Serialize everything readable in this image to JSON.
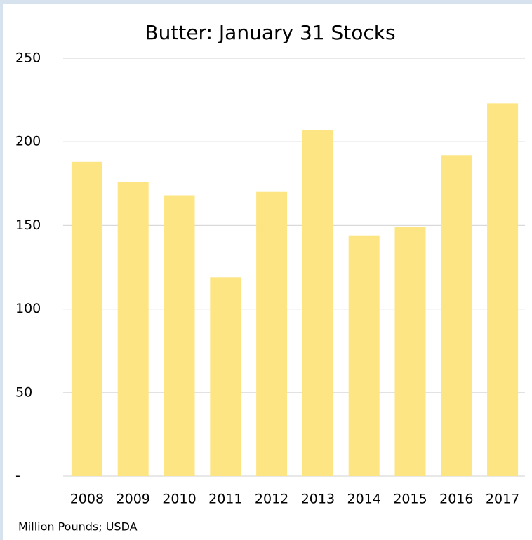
{
  "chart_data": {
    "type": "bar",
    "title": "Butter: January 31 Stocks",
    "categories": [
      "2008",
      "2009",
      "2010",
      "2011",
      "2012",
      "2013",
      "2014",
      "2015",
      "2016",
      "2017"
    ],
    "values": [
      188,
      176,
      168,
      119,
      170,
      207,
      144,
      149,
      192,
      223
    ],
    "color": "#fde583",
    "ylim": [
      0,
      250
    ],
    "yticks": [
      {
        "value": 0,
        "label": "-"
      },
      50,
      100,
      150,
      200,
      250
    ],
    "grid": true,
    "note": "Million Pounds; USDA"
  }
}
